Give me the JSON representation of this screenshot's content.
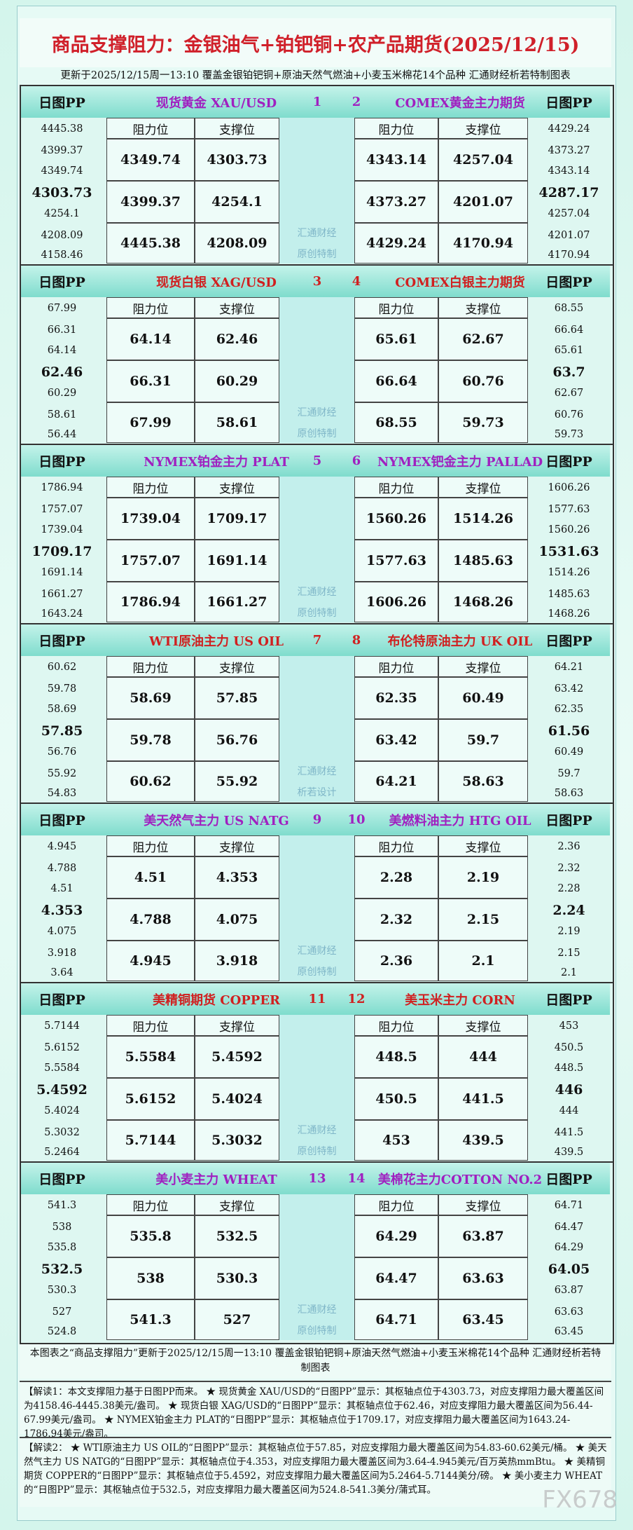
{
  "header": {
    "title": "商品支撑阻力：金银油气+铂钯铜+农产品期货(2025/12/15)",
    "subtitle": "更新于2025/12/15周一13:10 覆盖金银铂钯铜+原油天然气燃油+小麦玉米棉花14个品种 汇通财经析若特制图表"
  },
  "blocks": [
    {
      "left": {
        "pp_label": "日图PP",
        "name": "现货黄金 XAU/USD",
        "number": "1",
        "pp": [
          "4445.38",
          "4399.37",
          "4349.74",
          "4303.73",
          "4254.1",
          "4208.09",
          "4158.46"
        ],
        "table": {
          "header": [
            "阻力位",
            "支撑位"
          ],
          "rows": [
            [
              "4349.74",
              "4303.73"
            ],
            [
              "4399.37",
              "4254.1"
            ],
            [
              "4445.38",
              "4208.09"
            ]
          ]
        }
      },
      "right": {
        "pp_label": "日图PP",
        "name": "COMEX黄金主力期货",
        "number": "2",
        "pp": [
          "4429.24",
          "4373.27",
          "4343.14",
          "4287.17",
          "4257.04",
          "4201.07",
          "4170.94"
        ],
        "table": {
          "header": [
            "阻力位",
            "支撑位"
          ],
          "rows": [
            [
              "4343.14",
              "4257.04"
            ],
            [
              "4373.27",
              "4201.07"
            ],
            [
              "4429.24",
              "4170.94"
            ]
          ]
        }
      },
      "watermark": [
        "汇通财经",
        "原创特制"
      ]
    },
    {
      "left": {
        "pp_label": "日图PP",
        "name": "现货白银 XAG/USD",
        "number": "3",
        "pp": [
          "67.99",
          "66.31",
          "64.14",
          "62.46",
          "60.29",
          "58.61",
          "56.44"
        ],
        "table": {
          "header": [
            "阻力位",
            "支撑位"
          ],
          "rows": [
            [
              "64.14",
              "62.46"
            ],
            [
              "66.31",
              "60.29"
            ],
            [
              "67.99",
              "58.61"
            ]
          ]
        }
      },
      "right": {
        "pp_label": "日图PP",
        "name": "COMEX白银主力期货",
        "number": "4",
        "pp": [
          "68.55",
          "66.64",
          "65.61",
          "63.7",
          "62.67",
          "60.76",
          "59.73"
        ],
        "table": {
          "header": [
            "阻力位",
            "支撑位"
          ],
          "rows": [
            [
              "65.61",
              "62.67"
            ],
            [
              "66.64",
              "60.76"
            ],
            [
              "68.55",
              "59.73"
            ]
          ]
        }
      },
      "watermark": [
        "汇通财经",
        "原创特制"
      ]
    },
    {
      "left": {
        "pp_label": "日图PP",
        "name": "NYMEX铂金主力 PLAT",
        "number": "5",
        "pp": [
          "1786.94",
          "1757.07",
          "1739.04",
          "1709.17",
          "1691.14",
          "1661.27",
          "1643.24"
        ],
        "table": {
          "header": [
            "阻力位",
            "支撑位"
          ],
          "rows": [
            [
              "1739.04",
              "1709.17"
            ],
            [
              "1757.07",
              "1691.14"
            ],
            [
              "1786.94",
              "1661.27"
            ]
          ]
        }
      },
      "right": {
        "pp_label": "日图PP",
        "name": "NYMEX钯金主力 PALLAD",
        "number": "6",
        "pp": [
          "1606.26",
          "1577.63",
          "1560.26",
          "1531.63",
          "1514.26",
          "1485.63",
          "1468.26"
        ],
        "table": {
          "header": [
            "阻力位",
            "支撑位"
          ],
          "rows": [
            [
              "1560.26",
              "1514.26"
            ],
            [
              "1577.63",
              "1485.63"
            ],
            [
              "1606.26",
              "1468.26"
            ]
          ]
        }
      },
      "watermark": [
        "汇通财经",
        "原创特制"
      ]
    },
    {
      "left": {
        "pp_label": "日图PP",
        "name": "WTI原油主力 US OIL",
        "number": "7",
        "pp": [
          "60.62",
          "59.78",
          "58.69",
          "57.85",
          "56.76",
          "55.92",
          "54.83"
        ],
        "table": {
          "header": [
            "阻力位",
            "支撑位"
          ],
          "rows": [
            [
              "58.69",
              "57.85"
            ],
            [
              "59.78",
              "56.76"
            ],
            [
              "60.62",
              "55.92"
            ]
          ]
        }
      },
      "right": {
        "pp_label": "日图PP",
        "name": "布伦特原油主力 UK OIL",
        "number": "8",
        "pp": [
          "64.21",
          "63.42",
          "62.35",
          "61.56",
          "60.49",
          "59.7",
          "58.63"
        ],
        "table": {
          "header": [
            "阻力位",
            "支撑位"
          ],
          "rows": [
            [
              "62.35",
              "60.49"
            ],
            [
              "63.42",
              "59.7"
            ],
            [
              "64.21",
              "58.63"
            ]
          ]
        }
      },
      "watermark": [
        "汇通财经",
        "析若设计"
      ]
    },
    {
      "left": {
        "pp_label": "日图PP",
        "name": "美天然气主力 US NATG",
        "number": "9",
        "pp": [
          "4.945",
          "4.788",
          "4.51",
          "4.353",
          "4.075",
          "3.918",
          "3.64"
        ],
        "table": {
          "header": [
            "阻力位",
            "支撑位"
          ],
          "rows": [
            [
              "4.51",
              "4.353"
            ],
            [
              "4.788",
              "4.075"
            ],
            [
              "4.945",
              "3.918"
            ]
          ]
        }
      },
      "right": {
        "pp_label": "日图PP",
        "name": "美燃料油主力 HTG OIL",
        "number": "10",
        "pp": [
          "2.36",
          "2.32",
          "2.28",
          "2.24",
          "2.19",
          "2.15",
          "2.1"
        ],
        "table": {
          "header": [
            "阻力位",
            "支撑位"
          ],
          "rows": [
            [
              "2.28",
              "2.19"
            ],
            [
              "2.32",
              "2.15"
            ],
            [
              "2.36",
              "2.1"
            ]
          ]
        }
      },
      "watermark": [
        "汇通财经",
        "原创特制"
      ]
    },
    {
      "left": {
        "pp_label": "日图PP",
        "name": "美精铜期货 COPPER",
        "number": "11",
        "pp": [
          "5.7144",
          "5.6152",
          "5.5584",
          "5.4592",
          "5.4024",
          "5.3032",
          "5.2464"
        ],
        "table": {
          "header": [
            "阻力位",
            "支撑位"
          ],
          "rows": [
            [
              "5.5584",
              "5.4592"
            ],
            [
              "5.6152",
              "5.4024"
            ],
            [
              "5.7144",
              "5.3032"
            ]
          ]
        }
      },
      "right": {
        "pp_label": "日图PP",
        "name": "美玉米主力 CORN",
        "number": "12",
        "pp": [
          "453",
          "450.5",
          "448.5",
          "446",
          "444",
          "441.5",
          "439.5"
        ],
        "table": {
          "header": [
            "阻力位",
            "支撑位"
          ],
          "rows": [
            [
              "448.5",
              "444"
            ],
            [
              "450.5",
              "441.5"
            ],
            [
              "453",
              "439.5"
            ]
          ]
        }
      },
      "watermark": [
        "汇通财经",
        "原创特制"
      ]
    },
    {
      "left": {
        "pp_label": "日图PP",
        "name": "美小麦主力 WHEAT",
        "number": "13",
        "pp": [
          "541.3",
          "538",
          "535.8",
          "532.5",
          "530.3",
          "527",
          "524.8"
        ],
        "table": {
          "header": [
            "阻力位",
            "支撑位"
          ],
          "rows": [
            [
              "535.8",
              "532.5"
            ],
            [
              "538",
              "530.3"
            ],
            [
              "541.3",
              "527"
            ]
          ]
        }
      },
      "right": {
        "pp_label": "日图PP",
        "name": "美棉花主力COTTON NO.2",
        "number": "14",
        "pp": [
          "64.71",
          "64.47",
          "64.29",
          "64.05",
          "63.87",
          "63.63",
          "63.45"
        ],
        "table": {
          "header": [
            "阻力位",
            "支撑位"
          ],
          "rows": [
            [
              "64.29",
              "63.87"
            ],
            [
              "64.47",
              "63.63"
            ],
            [
              "64.71",
              "63.45"
            ]
          ]
        }
      },
      "watermark": [
        "汇通财经",
        "原创特制"
      ]
    }
  ],
  "footer": "本图表之“商品支撑阻力”更新于2025/12/15周一13:10 覆盖金银铂钯铜+原油天然气燃油+小麦玉米棉花14个品种 汇通财经析若特制图表",
  "notes": [
    "【解读1：本文支撑阻力基于日图PP而来。 ★ 现货黄金 XAU/USD的“日图PP”显示：其枢轴点位于4303.73，对应支撑阻力最大覆盖区间为4158.46-4445.38美元/盎司。 ★ 现货白银 XAG/USD的“日图PP”显示：其枢轴点位于62.46，对应支撑阻力最大覆盖区间为56.44-67.99美元/盎司。 ★ NYMEX铂金主力 PLAT的“日图PP”显示：其枢轴点位于1709.17，对应支撑阻力最大覆盖区间为1643.24-1786.94美元/盎司。",
    "【解读2： ★ WTI原油主力 US OIL的“日图PP”显示：其枢轴点位于57.85，对应支撑阻力最大覆盖区间为54.83-60.62美元/桶。 ★ 美天然气主力 US NATG的“日图PP”显示：其枢轴点位于4.353，对应支撑阻力最大覆盖区间为3.64-4.945美元/百万英热mmBtu。 ★ 美精铜期货 COPPER的“日图PP”显示：其枢轴点位于5.4592，对应支撑阻力最大覆盖区间为5.2464-5.7144美分/磅。 ★ 美小麦主力 WHEAT的“日图PP”显示：其枢轴点位于532.5，对应支撑阻力最大覆盖区间为524.8-541.3美分/蒲式耳。"
  ],
  "watermark": "FX678"
}
